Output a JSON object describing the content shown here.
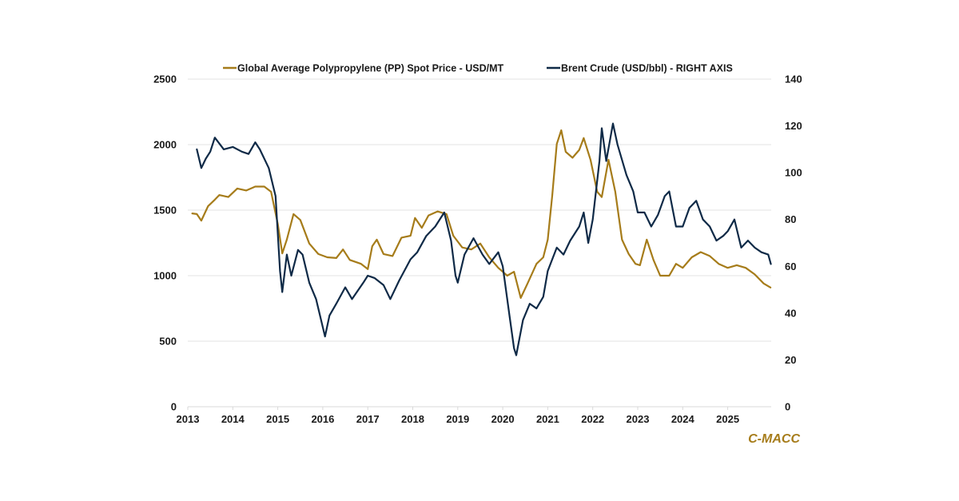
{
  "chart_data": {
    "type": "line",
    "title": "",
    "xlabel": "",
    "ylabel": "",
    "y2label": "",
    "xlim": [
      2013,
      2025.96
    ],
    "ylim": [
      0,
      2500
    ],
    "y2lim": [
      0,
      140
    ],
    "x_ticks": [
      2013,
      2014,
      2015,
      2016,
      2017,
      2018,
      2019,
      2020,
      2021,
      2022,
      2023,
      2024,
      2025
    ],
    "x_tick_labels": [
      "2013",
      "2014",
      "2015",
      "2016",
      "2017",
      "2018",
      "2019",
      "2020",
      "2021",
      "2022",
      "2023",
      "2024",
      "2025"
    ],
    "y_ticks": [
      0,
      500,
      1000,
      1500,
      2000,
      2500
    ],
    "y_tick_labels": [
      "0",
      "500",
      "1000",
      "1500",
      "2000",
      "2500"
    ],
    "y2_ticks": [
      0,
      20,
      40,
      60,
      80,
      100,
      120,
      140
    ],
    "y2_tick_labels": [
      "0",
      "20",
      "40",
      "60",
      "80",
      "100",
      "120",
      "140"
    ],
    "grid": true,
    "legend_position": "top-center",
    "annotation": "C-MACC",
    "series": [
      {
        "name": "Global Average Polypropylene (PP) Spot Price - USD/MT",
        "axis": "left",
        "color": "#a67c1a",
        "x": [
          2013.1,
          2013.2,
          2013.3,
          2013.45,
          2013.6,
          2013.7,
          2013.9,
          2014.1,
          2014.3,
          2014.5,
          2014.7,
          2014.85,
          2015.0,
          2015.1,
          2015.2,
          2015.35,
          2015.5,
          2015.7,
          2015.9,
          2016.1,
          2016.3,
          2016.45,
          2016.6,
          2016.85,
          2017.0,
          2017.1,
          2017.2,
          2017.35,
          2017.55,
          2017.75,
          2017.95,
          2018.05,
          2018.2,
          2018.35,
          2018.55,
          2018.75,
          2018.9,
          2019.1,
          2019.3,
          2019.5,
          2019.7,
          2019.9,
          2020.1,
          2020.25,
          2020.4,
          2020.55,
          2020.75,
          2020.9,
          2021.0,
          2021.1,
          2021.2,
          2021.3,
          2021.4,
          2021.55,
          2021.7,
          2021.8,
          2021.95,
          2022.1,
          2022.2,
          2022.35,
          2022.5,
          2022.65,
          2022.8,
          2022.95,
          2023.05,
          2023.2,
          2023.35,
          2023.5,
          2023.7,
          2023.85,
          2024.0,
          2024.2,
          2024.4,
          2024.6,
          2024.8,
          2025.0,
          2025.2,
          2025.4,
          2025.6,
          2025.8,
          2025.95
        ],
        "values": [
          1475,
          1470,
          1420,
          1530,
          1580,
          1615,
          1600,
          1665,
          1650,
          1680,
          1680,
          1640,
          1395,
          1170,
          1275,
          1470,
          1425,
          1245,
          1165,
          1140,
          1135,
          1200,
          1120,
          1090,
          1050,
          1225,
          1275,
          1165,
          1150,
          1290,
          1305,
          1440,
          1365,
          1460,
          1490,
          1470,
          1305,
          1215,
          1200,
          1245,
          1140,
          1060,
          1000,
          1030,
          830,
          940,
          1090,
          1140,
          1275,
          1610,
          2005,
          2110,
          1945,
          1900,
          1960,
          2050,
          1885,
          1640,
          1600,
          1885,
          1640,
          1275,
          1165,
          1090,
          1080,
          1275,
          1120,
          1000,
          1000,
          1090,
          1060,
          1140,
          1180,
          1150,
          1090,
          1060,
          1080,
          1060,
          1010,
          940,
          910
        ]
      },
      {
        "name": "Brent Crude (USD/bbl) - RIGHT AXIS",
        "axis": "right",
        "color": "#0f2a47",
        "x": [
          2013.2,
          2013.3,
          2013.4,
          2013.5,
          2013.6,
          2013.8,
          2014.0,
          2014.2,
          2014.35,
          2014.5,
          2014.6,
          2014.8,
          2014.95,
          2015.05,
          2015.1,
          2015.2,
          2015.3,
          2015.45,
          2015.55,
          2015.7,
          2015.85,
          2016.05,
          2016.15,
          2016.3,
          2016.5,
          2016.65,
          2016.9,
          2017.0,
          2017.15,
          2017.35,
          2017.5,
          2017.7,
          2017.95,
          2018.1,
          2018.3,
          2018.5,
          2018.7,
          2018.85,
          2018.95,
          2019.0,
          2019.15,
          2019.35,
          2019.55,
          2019.7,
          2019.9,
          2020.0,
          2020.15,
          2020.25,
          2020.3,
          2020.45,
          2020.6,
          2020.75,
          2020.9,
          2021.0,
          2021.2,
          2021.35,
          2021.5,
          2021.7,
          2021.8,
          2021.9,
          2022.0,
          2022.15,
          2022.2,
          2022.3,
          2022.45,
          2022.55,
          2022.75,
          2022.9,
          2023.0,
          2023.15,
          2023.3,
          2023.45,
          2023.6,
          2023.7,
          2023.85,
          2024.0,
          2024.15,
          2024.3,
          2024.45,
          2024.6,
          2024.75,
          2024.9,
          2025.0,
          2025.15,
          2025.3,
          2025.45,
          2025.6,
          2025.75,
          2025.9,
          2025.96
        ],
        "values": [
          110,
          102,
          106,
          109,
          115,
          110,
          111,
          109,
          108,
          113,
          110,
          102,
          90,
          58,
          49,
          65,
          56,
          67,
          65,
          53,
          46,
          30,
          39,
          44,
          51,
          46,
          53,
          56,
          55,
          52,
          46,
          54,
          63,
          66,
          73,
          77,
          83,
          71,
          56,
          53,
          65,
          72,
          65,
          61,
          66,
          60,
          39,
          25,
          22,
          37,
          44,
          42,
          47,
          58,
          68,
          65,
          71,
          77,
          83,
          70,
          80,
          105,
          119,
          105,
          121,
          112,
          99,
          92,
          83,
          83,
          77,
          82,
          90,
          92,
          77,
          77,
          85,
          88,
          80,
          77,
          71,
          73,
          75,
          80,
          68,
          71,
          68,
          66,
          65,
          61
        ]
      }
    ]
  }
}
